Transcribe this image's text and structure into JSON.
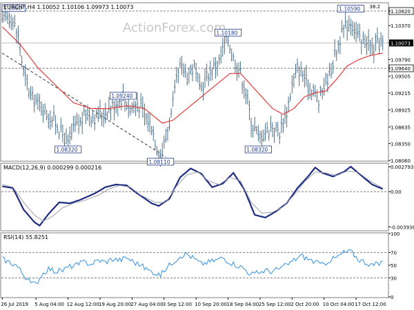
{
  "watermark": "ActionForex.com",
  "colors": {
    "bar": "#4a6f8a",
    "ma": "#e33a3a",
    "macd": "#1c2a80",
    "signal": "#9aa0aa",
    "rsi": "#2f8fe0",
    "grid": "#d9d9d9",
    "frame": "#7f7f7f",
    "ref_line": "#7f7f7f"
  },
  "chart_data": [
    {
      "type": "line",
      "panel": "price",
      "title": "EURCHF,H4  1.10052 1.10106 1.09973 1.10073",
      "corner_label": "38.2",
      "y_ticks": [
        "1.10620",
        "1.10370",
        "1.10073",
        "1.09790",
        "1.09640",
        "1.09505",
        "1.09215",
        "1.08925",
        "1.08635",
        "1.08350",
        "1.08060"
      ],
      "tick_values": [
        1.1062,
        1.1037,
        1.10073,
        1.0979,
        1.0964,
        1.09505,
        1.09215,
        1.08925,
        1.08635,
        1.0835,
        1.0806
      ],
      "ylim": [
        1.0806,
        1.1075
      ],
      "hlines": [
        1.1062,
        1.0964
      ],
      "current_price": 1.10073,
      "annotations": [
        {
          "text": "1.10180",
          "value": 1.1018,
          "bar": 127
        },
        {
          "text": "1.10590",
          "value": 1.1059,
          "bar": 196
        },
        {
          "text": "1.09240",
          "value": 1.0924,
          "bar": 68
        },
        {
          "text": "1.08320",
          "value": 1.0832,
          "bar": 37
        },
        {
          "text": "1.08110",
          "value": 1.0811,
          "bar": 89
        },
        {
          "text": "1.08320",
          "value": 1.0832,
          "bar": 144
        },
        {
          "text": "1.1060",
          "value": 1.106,
          "bar": 2
        }
      ],
      "ohlc_anchor_points": [
        [
          0,
          1.104
        ],
        [
          3,
          1.1055
        ],
        [
          6,
          1.1045
        ],
        [
          9,
          1.102
        ],
        [
          12,
          1.0955
        ],
        [
          16,
          1.0915
        ],
        [
          20,
          1.0905
        ],
        [
          24,
          1.089
        ],
        [
          29,
          1.0875
        ],
        [
          35,
          1.0845
        ],
        [
          37,
          1.0832
        ],
        [
          40,
          1.086
        ],
        [
          44,
          1.087
        ],
        [
          48,
          1.089
        ],
        [
          52,
          1.088
        ],
        [
          56,
          1.0885
        ],
        [
          60,
          1.0895
        ],
        [
          64,
          1.0905
        ],
        [
          68,
          1.0915
        ],
        [
          72,
          1.0895
        ],
        [
          76,
          1.0905
        ],
        [
          80,
          1.0885
        ],
        [
          84,
          1.0865
        ],
        [
          87,
          1.083
        ],
        [
          89,
          1.0815
        ],
        [
          92,
          1.0845
        ],
        [
          95,
          1.0885
        ],
        [
          98,
          1.094
        ],
        [
          100,
          1.0965
        ],
        [
          104,
          1.0955
        ],
        [
          108,
          1.0965
        ],
        [
          111,
          1.0925
        ],
        [
          114,
          1.0945
        ],
        [
          118,
          1.0965
        ],
        [
          122,
          1.0975
        ],
        [
          125,
          1.1005
        ],
        [
          127,
          1.1015
        ],
        [
          130,
          1.098
        ],
        [
          133,
          1.0965
        ],
        [
          136,
          1.0935
        ],
        [
          140,
          1.0875
        ],
        [
          144,
          1.0845
        ],
        [
          148,
          1.0855
        ],
        [
          152,
          1.0865
        ],
        [
          156,
          1.0855
        ],
        [
          160,
          1.089
        ],
        [
          163,
          1.0935
        ],
        [
          166,
          1.0965
        ],
        [
          169,
          1.0955
        ],
        [
          172,
          1.0935
        ],
        [
          175,
          1.0925
        ],
        [
          178,
          1.0905
        ],
        [
          181,
          1.0935
        ],
        [
          184,
          1.0955
        ],
        [
          187,
          1.0985
        ],
        [
          190,
          1.1015
        ],
        [
          193,
          1.1035
        ],
        [
          196,
          1.1045
        ],
        [
          199,
          1.1025
        ],
        [
          202,
          1.1005
        ],
        [
          205,
          1.1015
        ],
        [
          208,
          1.0995
        ],
        [
          211,
          1.1005
        ],
        [
          214,
          1.1007
        ]
      ],
      "ma_anchor_points": [
        [
          0,
          1.1035
        ],
        [
          10,
          1.1005
        ],
        [
          20,
          1.0965
        ],
        [
          30,
          1.0935
        ],
        [
          40,
          1.0905
        ],
        [
          50,
          1.0895
        ],
        [
          60,
          1.0895
        ],
        [
          70,
          1.09
        ],
        [
          80,
          1.0895
        ],
        [
          90,
          1.087
        ],
        [
          96,
          1.0875
        ],
        [
          104,
          1.0895
        ],
        [
          112,
          1.0915
        ],
        [
          120,
          1.0935
        ],
        [
          128,
          1.0955
        ],
        [
          134,
          1.0955
        ],
        [
          140,
          1.0935
        ],
        [
          146,
          1.0915
        ],
        [
          152,
          1.0895
        ],
        [
          158,
          1.0885
        ],
        [
          164,
          1.0895
        ],
        [
          170,
          1.0915
        ],
        [
          176,
          1.0922
        ],
        [
          182,
          1.0925
        ],
        [
          188,
          1.0945
        ],
        [
          194,
          1.0968
        ],
        [
          200,
          1.0978
        ],
        [
          206,
          1.0985
        ],
        [
          214,
          1.099
        ]
      ]
    },
    {
      "type": "line",
      "panel": "macd",
      "title": "MACD(12,26,9) 0.000299 0.000216",
      "y_ticks": [
        "0.002793",
        "0.00",
        "-0.003938"
      ],
      "tick_values": [
        0.002793,
        0.0,
        -0.003938
      ],
      "ylim": [
        -0.0043,
        0.0031
      ],
      "series": [
        {
          "key": "macd",
          "anchor_points": [
            [
              0,
              0.0006
            ],
            [
              6,
              0.0004
            ],
            [
              12,
              -0.002
            ],
            [
              18,
              -0.0034
            ],
            [
              21,
              -0.0038
            ],
            [
              26,
              -0.0025
            ],
            [
              32,
              -0.0012
            ],
            [
              38,
              -0.0013
            ],
            [
              44,
              -0.0009
            ],
            [
              52,
              -0.0002
            ],
            [
              58,
              0.0005
            ],
            [
              64,
              0.0008
            ],
            [
              70,
              0.0007
            ],
            [
              76,
              -0.0002
            ],
            [
              84,
              -0.0013
            ],
            [
              88,
              -0.0016
            ],
            [
              94,
              -0.0008
            ],
            [
              100,
              0.0016
            ],
            [
              106,
              0.0026
            ],
            [
              112,
              0.002
            ],
            [
              118,
              0.0005
            ],
            [
              124,
              0.0009
            ],
            [
              130,
              0.0021
            ],
            [
              136,
              0.0003
            ],
            [
              142,
              -0.0026
            ],
            [
              148,
              -0.0029
            ],
            [
              154,
              -0.0022
            ],
            [
              160,
              -0.0013
            ],
            [
              166,
              0.0004
            ],
            [
              172,
              0.0017
            ],
            [
              176,
              0.0027
            ],
            [
              180,
              0.0021
            ],
            [
              186,
              0.0017
            ],
            [
              192,
              0.0022
            ],
            [
              196,
              0.0028
            ],
            [
              202,
              0.0018
            ],
            [
              208,
              0.0008
            ],
            [
              214,
              0.0003
            ]
          ]
        },
        {
          "key": "signal",
          "anchor_points": [
            [
              0,
              0.0008
            ],
            [
              6,
              0.0005
            ],
            [
              12,
              -0.0012
            ],
            [
              18,
              -0.0026
            ],
            [
              23,
              -0.0033
            ],
            [
              28,
              -0.0028
            ],
            [
              34,
              -0.0018
            ],
            [
              40,
              -0.0013
            ],
            [
              46,
              -0.001
            ],
            [
              54,
              -0.0004
            ],
            [
              60,
              0.0003
            ],
            [
              66,
              0.0007
            ],
            [
              72,
              0.0005
            ],
            [
              78,
              -0.0004
            ],
            [
              86,
              -0.0012
            ],
            [
              92,
              -0.0012
            ],
            [
              98,
              0.0006
            ],
            [
              104,
              0.0019
            ],
            [
              110,
              0.0022
            ],
            [
              116,
              0.0012
            ],
            [
              122,
              0.0008
            ],
            [
              128,
              0.0016
            ],
            [
              134,
              0.0012
            ],
            [
              140,
              -0.0012
            ],
            [
              146,
              -0.0024
            ],
            [
              152,
              -0.0023
            ],
            [
              158,
              -0.0017
            ],
            [
              164,
              -0.0004
            ],
            [
              170,
              0.0011
            ],
            [
              176,
              0.0022
            ],
            [
              182,
              0.0021
            ],
            [
              188,
              0.0018
            ],
            [
              194,
              0.0023
            ],
            [
              200,
              0.0022
            ],
            [
              206,
              0.0013
            ],
            [
              214,
              0.0004
            ]
          ]
        }
      ]
    },
    {
      "type": "line",
      "panel": "rsi",
      "title": "RSI(14) 55.8251",
      "y_ticks": [
        "100",
        "70",
        "50",
        "30",
        "0"
      ],
      "tick_values": [
        100,
        70,
        50,
        30,
        0
      ],
      "ylim": [
        0,
        100
      ],
      "levels": [
        70,
        30
      ],
      "series": [
        {
          "key": "rsi",
          "anchor_points": [
            [
              0,
              60
            ],
            [
              4,
              55
            ],
            [
              8,
              50
            ],
            [
              12,
              35
            ],
            [
              16,
              22
            ],
            [
              19,
              20
            ],
            [
              22,
              35
            ],
            [
              26,
              45
            ],
            [
              30,
              40
            ],
            [
              34,
              42
            ],
            [
              38,
              48
            ],
            [
              42,
              50
            ],
            [
              46,
              55
            ],
            [
              50,
              52
            ],
            [
              54,
              58
            ],
            [
              58,
              55
            ],
            [
              62,
              60
            ],
            [
              66,
              58
            ],
            [
              70,
              62
            ],
            [
              74,
              55
            ],
            [
              78,
              50
            ],
            [
              82,
              42
            ],
            [
              86,
              38
            ],
            [
              89,
              34
            ],
            [
              92,
              45
            ],
            [
              96,
              55
            ],
            [
              100,
              65
            ],
            [
              104,
              68
            ],
            [
              108,
              60
            ],
            [
              112,
              52
            ],
            [
              116,
              55
            ],
            [
              120,
              58
            ],
            [
              124,
              62
            ],
            [
              128,
              55
            ],
            [
              132,
              50
            ],
            [
              136,
              45
            ],
            [
              140,
              35
            ],
            [
              144,
              38
            ],
            [
              148,
              42
            ],
            [
              152,
              40
            ],
            [
              156,
              45
            ],
            [
              160,
              50
            ],
            [
              164,
              58
            ],
            [
              168,
              65
            ],
            [
              172,
              60
            ],
            [
              176,
              55
            ],
            [
              180,
              50
            ],
            [
              184,
              58
            ],
            [
              188,
              62
            ],
            [
              192,
              70
            ],
            [
              196,
              72
            ],
            [
              200,
              60
            ],
            [
              204,
              55
            ],
            [
              208,
              50
            ],
            [
              212,
              52
            ],
            [
              214,
              56
            ]
          ]
        }
      ]
    }
  ],
  "x_axis": {
    "labels": [
      "26 Jul 2019",
      "5 Aug 04:00",
      "12 Aug 12:00",
      "19 Aug 20:00",
      "27 Aug 04:00",
      "3 Sep 12:00",
      "10 Sep 20:00",
      "18 Sep 04:00",
      "25 Sep 12:00",
      "2 Oct 20:00",
      "10 Oct 04:00",
      "17 Oct 12:00"
    ],
    "label_bars": [
      0,
      19,
      37,
      55,
      73,
      91,
      109,
      127,
      145,
      163,
      181,
      199
    ],
    "bar_count": 215
  }
}
